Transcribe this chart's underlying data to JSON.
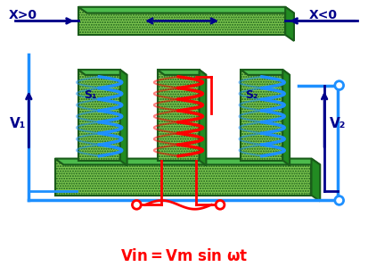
{
  "bg_color": "#ffffff",
  "dark_green": "#1a5c1a",
  "mid_green": "#228B22",
  "light_green": "#7EC850",
  "top_green": "#4CBB4C",
  "blue_dark": "#00008B",
  "blue_circuit": "#1E90FF",
  "red_coil": "#FF0000",
  "text_color_red": "#FF0000",
  "label_x_pos": "X>0",
  "label_x_neg": "X<0",
  "label_s1": "S₁",
  "label_s2": "S₂",
  "label_v1": "V₁",
  "label_v2": "V₂",
  "vin_label": "Vin=Vm sin ωt"
}
